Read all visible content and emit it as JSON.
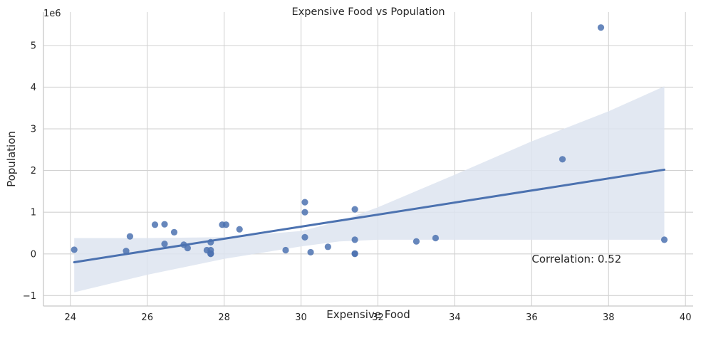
{
  "chart_data": {
    "type": "scatter",
    "title": "Expensive Food vs Population",
    "xlabel": "Expensive Food",
    "ylabel": "Population",
    "y_offset_label": "1e6",
    "xlim": [
      23.3,
      40.2
    ],
    "ylim": [
      -1.25,
      5.8
    ],
    "x_ticks": [
      24,
      26,
      28,
      30,
      32,
      34,
      36,
      38,
      40
    ],
    "y_ticks": [
      -1,
      0,
      1,
      2,
      3,
      4,
      5
    ],
    "grid": true,
    "points": [
      {
        "x": 24.1,
        "y": 0.1
      },
      {
        "x": 25.45,
        "y": 0.07
      },
      {
        "x": 25.55,
        "y": 0.42
      },
      {
        "x": 26.2,
        "y": 0.7
      },
      {
        "x": 26.45,
        "y": 0.71
      },
      {
        "x": 26.45,
        "y": 0.24
      },
      {
        "x": 26.7,
        "y": 0.52
      },
      {
        "x": 26.95,
        "y": 0.22
      },
      {
        "x": 27.05,
        "y": 0.14
      },
      {
        "x": 27.55,
        "y": 0.09
      },
      {
        "x": 27.65,
        "y": 0.28
      },
      {
        "x": 27.65,
        "y": 0.09
      },
      {
        "x": 27.65,
        "y": 0.01
      },
      {
        "x": 27.65,
        "y": 0.0
      },
      {
        "x": 27.95,
        "y": 0.7
      },
      {
        "x": 28.05,
        "y": 0.7
      },
      {
        "x": 28.4,
        "y": 0.59
      },
      {
        "x": 29.6,
        "y": 0.09
      },
      {
        "x": 30.1,
        "y": 1.24
      },
      {
        "x": 30.1,
        "y": 1.0
      },
      {
        "x": 30.1,
        "y": 0.4
      },
      {
        "x": 30.25,
        "y": 0.04
      },
      {
        "x": 30.7,
        "y": 0.17
      },
      {
        "x": 31.4,
        "y": 1.07
      },
      {
        "x": 31.4,
        "y": 0.34
      },
      {
        "x": 31.4,
        "y": 0.01
      },
      {
        "x": 31.4,
        "y": 0.0
      },
      {
        "x": 33.0,
        "y": 0.3
      },
      {
        "x": 33.5,
        "y": 0.38
      },
      {
        "x": 36.8,
        "y": 2.27
      },
      {
        "x": 37.8,
        "y": 5.43
      },
      {
        "x": 39.45,
        "y": 0.34
      }
    ],
    "regression": {
      "x_range": [
        24.1,
        39.45
      ],
      "y_start": -0.2,
      "y_end": 2.02,
      "ci_band": [
        {
          "x": 24.1,
          "lower": -0.92,
          "upper": 0.38
        },
        {
          "x": 26.0,
          "lower": -0.5,
          "upper": 0.38
        },
        {
          "x": 28.0,
          "lower": -0.12,
          "upper": 0.4
        },
        {
          "x": 30.0,
          "lower": 0.18,
          "upper": 0.55
        },
        {
          "x": 31.0,
          "lower": 0.3,
          "upper": 0.78
        },
        {
          "x": 32.0,
          "lower": 0.34,
          "upper": 1.12
        },
        {
          "x": 34.0,
          "lower": 0.34,
          "upper": 1.9
        },
        {
          "x": 36.0,
          "lower": 0.34,
          "upper": 2.7
        },
        {
          "x": 38.0,
          "lower": 0.34,
          "upper": 3.42
        },
        {
          "x": 39.45,
          "lower": 0.34,
          "upper": 4.02
        }
      ]
    },
    "annotation": {
      "text": "Correlation: 0.52",
      "x": 36.0,
      "y": -0.12
    },
    "colors": {
      "points": "#4c72b0",
      "line": "#4c72b0",
      "band": "#dde4f0",
      "grid": "#d2d2d2",
      "spine": "#c8c8c8"
    }
  }
}
